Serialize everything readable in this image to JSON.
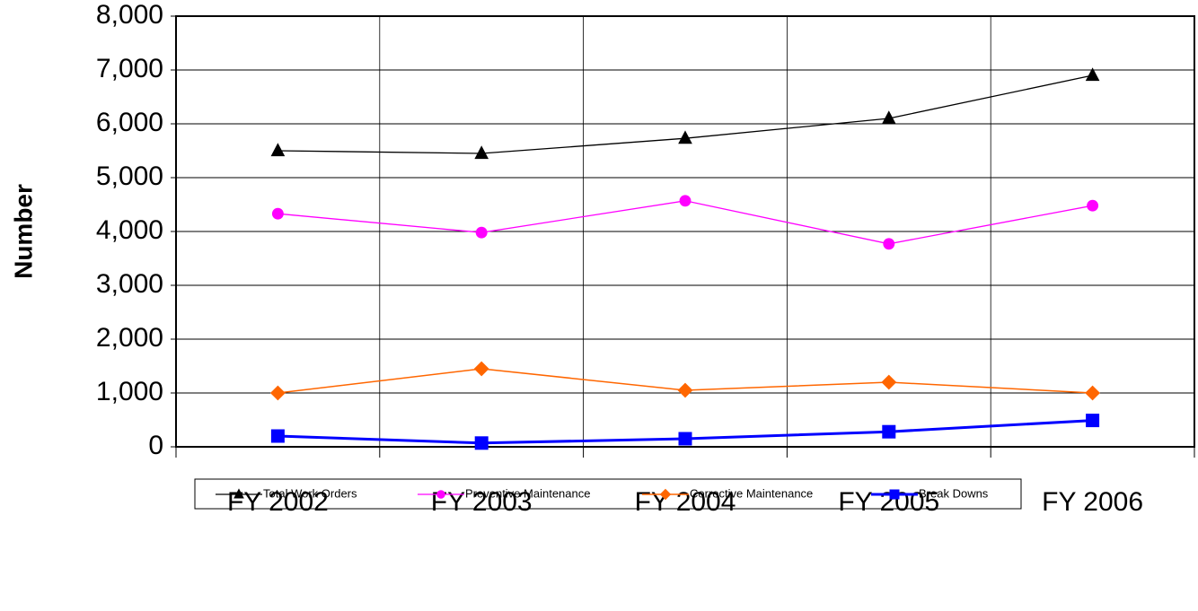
{
  "chart_data": {
    "type": "line",
    "y_label": "Number",
    "categories": [
      "FY 2002",
      "FY 2003",
      "FY 2004",
      "FY 2005",
      "FY 2006"
    ],
    "series": [
      {
        "name": "Total Work Orders",
        "color": "#000000",
        "marker": "triangle",
        "values": [
          5500,
          5450,
          5730,
          6100,
          6900
        ]
      },
      {
        "name": "Preventive Maintenance",
        "color": "#ff00ff",
        "marker": "circle",
        "values": [
          4330,
          3980,
          4570,
          3770,
          4480
        ]
      },
      {
        "name": "Corrective Maintenance",
        "color": "#ff6600",
        "marker": "diamond",
        "values": [
          1000,
          1450,
          1050,
          1200,
          1000
        ]
      },
      {
        "name": "Break Downs",
        "color": "#0000ff",
        "marker": "square",
        "values": [
          200,
          70,
          150,
          280,
          490
        ]
      }
    ],
    "ylim": [
      0,
      8000
    ],
    "yticks": [
      0,
      {
        "value": 1000,
        "label": "1,000"
      },
      {
        "value": 2000,
        "label": "2,000"
      },
      {
        "value": 3000,
        "label": "3,000"
      },
      {
        "value": 4000,
        "label": "4,000"
      },
      {
        "value": 5000,
        "label": "5,000"
      },
      {
        "value": 6000,
        "label": "6,000"
      },
      {
        "value": 7000,
        "label": "7,000"
      },
      {
        "value": 8000,
        "label": "8,000"
      }
    ],
    "grid": true,
    "legend": "bottom"
  }
}
